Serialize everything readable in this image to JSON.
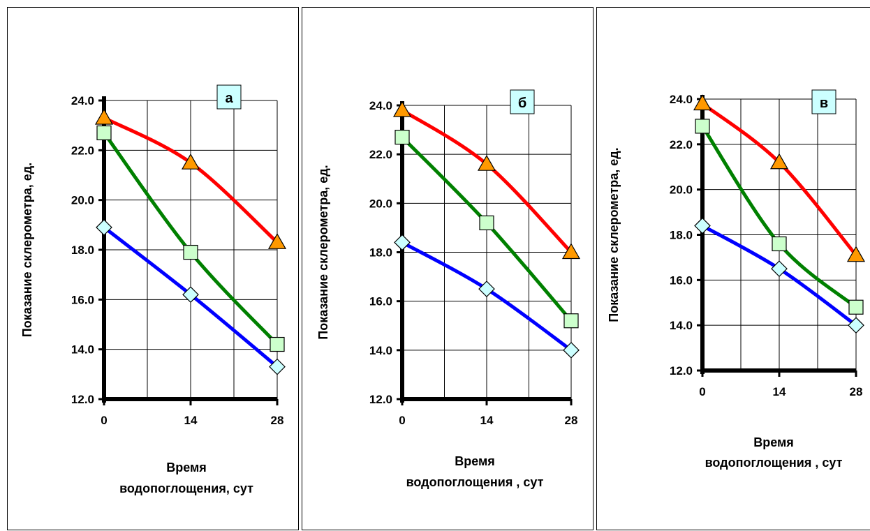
{
  "chart_data": [
    {
      "type": "line",
      "panel_label": "а",
      "ylabel": "Показание склерометра, ед.",
      "xlabel_line1": "Время",
      "xlabel_line2": "водопоглощения, сут",
      "x": [
        0,
        14,
        28
      ],
      "x_ticks": [
        "0",
        "14",
        "28"
      ],
      "ylim": [
        12,
        24
      ],
      "y_ticks": [
        "12.0",
        "14.0",
        "16.0",
        "18.0",
        "20.0",
        "22.0",
        "24.0"
      ],
      "grid": true,
      "series": [
        {
          "color": "#ff0000",
          "marker": "triangle",
          "marker_color": "#ff9900",
          "values": [
            23.3,
            21.5,
            18.3
          ]
        },
        {
          "color": "#008000",
          "marker": "square",
          "marker_color": "#ccffcc",
          "values": [
            22.7,
            17.9,
            14.2
          ]
        },
        {
          "color": "#0000ff",
          "marker": "diamond",
          "marker_color": "#ccffff",
          "values": [
            18.9,
            16.2,
            13.3
          ]
        }
      ]
    },
    {
      "type": "line",
      "panel_label": "б",
      "ylabel": "Показание склерометра, ед.",
      "xlabel_line1": "Время",
      "xlabel_line2": "водопоглощения , сут",
      "x": [
        0,
        14,
        28
      ],
      "x_ticks": [
        "0",
        "14",
        "28"
      ],
      "ylim": [
        12,
        24
      ],
      "y_ticks": [
        "12.0",
        "14.0",
        "16.0",
        "18.0",
        "20.0",
        "22.0",
        "24.0"
      ],
      "grid": true,
      "series": [
        {
          "color": "#ff0000",
          "marker": "triangle",
          "marker_color": "#ff9900",
          "values": [
            23.8,
            21.6,
            18.0
          ]
        },
        {
          "color": "#008000",
          "marker": "square",
          "marker_color": "#ccffcc",
          "values": [
            22.7,
            19.2,
            15.2
          ]
        },
        {
          "color": "#0000ff",
          "marker": "diamond",
          "marker_color": "#ccffff",
          "values": [
            18.4,
            16.5,
            14.0
          ]
        }
      ]
    },
    {
      "type": "line",
      "panel_label": "в",
      "ylabel": "Показание склерометра, ед.",
      "xlabel_line1": "Время",
      "xlabel_line2": "водопоглощения , сут",
      "x": [
        0,
        14,
        28
      ],
      "x_ticks": [
        "0",
        "14",
        "28"
      ],
      "ylim": [
        12,
        24
      ],
      "y_ticks": [
        "12.0",
        "14.0",
        "16.0",
        "18.0",
        "20.0",
        "22.0",
        "24.0"
      ],
      "grid": true,
      "series": [
        {
          "color": "#ff0000",
          "marker": "triangle",
          "marker_color": "#ff9900",
          "values": [
            23.8,
            21.2,
            17.1
          ]
        },
        {
          "color": "#008000",
          "marker": "square",
          "marker_color": "#ccffcc",
          "values": [
            22.8,
            17.6,
            14.8
          ]
        },
        {
          "color": "#0000ff",
          "marker": "diamond",
          "marker_color": "#ccffff",
          "values": [
            18.4,
            16.5,
            14.0
          ]
        }
      ]
    }
  ]
}
